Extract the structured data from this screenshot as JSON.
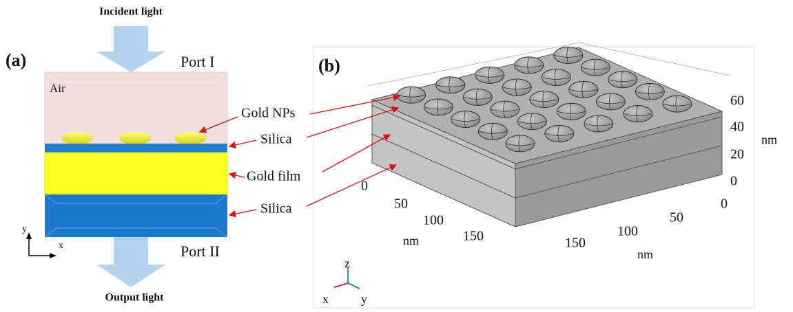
{
  "panel_a": {
    "label": "(a)",
    "incident": "Incident light",
    "port_top": "Port I",
    "air": "Air",
    "callouts": [
      "Gold NPs",
      "Silica",
      "Gold film",
      "Silica"
    ],
    "port_bottom": "Port II",
    "output": "Output light",
    "axis_y": "y",
    "axis_x": "x"
  },
  "panel_b": {
    "label": "(b)",
    "z_ticks": [
      0,
      20,
      40,
      60
    ],
    "z_unit": "nm",
    "y_ticks": [
      0,
      50,
      100,
      150
    ],
    "y_unit": "nm",
    "x_ticks": [
      0,
      50,
      100,
      150
    ],
    "x_unit": "nm",
    "triad": {
      "z": "z",
      "x": "x",
      "y": "y"
    }
  }
}
